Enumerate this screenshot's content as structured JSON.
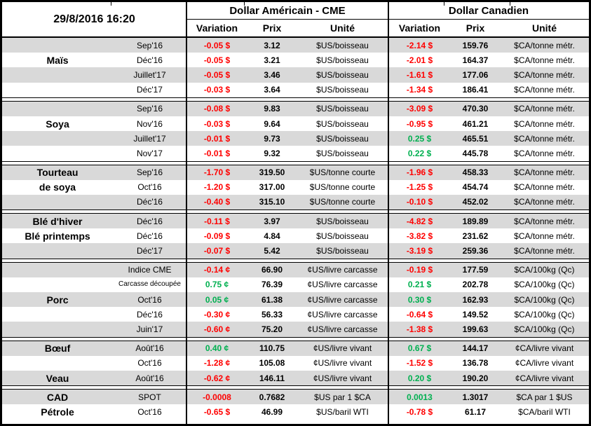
{
  "header": {
    "datetime": "29/8/2016 16:20",
    "us_title": "Dollar Américain - CME",
    "ca_title": "Dollar Canadien",
    "col_variation": "Variation",
    "col_prix": "Prix",
    "col_unite": "Unité"
  },
  "colors": {
    "negative": "#FF0000",
    "positive": "#00B050",
    "row_gray": "#D9D9D9",
    "border": "#000000"
  },
  "sections": [
    {
      "name": "mais",
      "rows": [
        {
          "contract": "Sep'16",
          "us_var": "-0.05 $",
          "us_prix": "3.12",
          "us_unit": "$US/boisseau",
          "ca_var": "-2.14 $",
          "ca_prix": "159.76",
          "ca_unit": "$CA/tonne métr."
        },
        {
          "label": "Maïs",
          "contract": "Déc'16",
          "us_var": "-0.05 $",
          "us_prix": "3.21",
          "us_unit": "$US/boisseau",
          "ca_var": "-2.01 $",
          "ca_prix": "164.37",
          "ca_unit": "$CA/tonne métr."
        },
        {
          "contract": "Juillet'17",
          "us_var": "-0.05 $",
          "us_prix": "3.46",
          "us_unit": "$US/boisseau",
          "ca_var": "-1.61 $",
          "ca_prix": "177.06",
          "ca_unit": "$CA/tonne métr."
        },
        {
          "contract": "Déc'17",
          "us_var": "-0.03 $",
          "us_prix": "3.64",
          "us_unit": "$US/boisseau",
          "ca_var": "-1.34 $",
          "ca_prix": "186.41",
          "ca_unit": "$CA/tonne métr."
        }
      ]
    },
    {
      "name": "soya",
      "rows": [
        {
          "contract": "Sep'16",
          "us_var": "-0.08 $",
          "us_prix": "9.83",
          "us_unit": "$US/boisseau",
          "ca_var": "-3.09 $",
          "ca_prix": "470.30",
          "ca_unit": "$CA/tonne métr."
        },
        {
          "label": "Soya",
          "contract": "Nov'16",
          "us_var": "-0.03 $",
          "us_prix": "9.64",
          "us_unit": "$US/boisseau",
          "ca_var": "-0.95 $",
          "ca_prix": "461.21",
          "ca_unit": "$CA/tonne métr."
        },
        {
          "contract": "Juillet'17",
          "us_var": "-0.01 $",
          "us_prix": "9.73",
          "us_unit": "$US/boisseau",
          "ca_var": "0.25 $",
          "ca_prix": "465.51",
          "ca_unit": "$CA/tonne métr."
        },
        {
          "contract": "Nov'17",
          "us_var": "-0.01 $",
          "us_prix": "9.32",
          "us_unit": "$US/boisseau",
          "ca_var": "0.22 $",
          "ca_prix": "445.78",
          "ca_unit": "$CA/tonne métr."
        }
      ]
    },
    {
      "name": "tourteau-de-soya",
      "rows": [
        {
          "label": "Tourteau",
          "contract": "Sep'16",
          "us_var": "-1.70 $",
          "us_prix": "319.50",
          "us_unit": "$US/tonne courte",
          "ca_var": "-1.96 $",
          "ca_prix": "458.33",
          "ca_unit": "$CA/tonne métr."
        },
        {
          "label": "de soya",
          "contract": "Oct'16",
          "us_var": "-1.20 $",
          "us_prix": "317.00",
          "us_unit": "$US/tonne courte",
          "ca_var": "-1.25 $",
          "ca_prix": "454.74",
          "ca_unit": "$CA/tonne métr."
        },
        {
          "contract": "Déc'16",
          "us_var": "-0.40 $",
          "us_prix": "315.10",
          "us_unit": "$US/tonne courte",
          "ca_var": "-0.10 $",
          "ca_prix": "452.02",
          "ca_unit": "$CA/tonne métr."
        }
      ]
    },
    {
      "name": "ble",
      "rows": [
        {
          "label": "Blé d'hiver",
          "contract": "Déc'16",
          "us_var": "-0.11 $",
          "us_prix": "3.97",
          "us_unit": "$US/boisseau",
          "ca_var": "-4.82 $",
          "ca_prix": "189.89",
          "ca_unit": "$CA/tonne métr."
        },
        {
          "label": "Blé printemps",
          "contract": "Déc'16",
          "us_var": "-0.09 $",
          "us_prix": "4.84",
          "us_unit": "$US/boisseau",
          "ca_var": "-3.82 $",
          "ca_prix": "231.62",
          "ca_unit": "$CA/tonne métr."
        },
        {
          "contract": "Déc'17",
          "us_var": "-0.07 $",
          "us_prix": "5.42",
          "us_unit": "$US/boisseau",
          "ca_var": "-3.19 $",
          "ca_prix": "259.36",
          "ca_unit": "$CA/tonne métr."
        }
      ]
    },
    {
      "name": "porc",
      "rows": [
        {
          "contract": "Indice CME",
          "us_var": "-0.14 ¢",
          "us_prix": "66.90",
          "us_unit": "¢US/livre carcasse",
          "ca_var": "-0.19 $",
          "ca_prix": "177.59",
          "ca_unit": "$CA/100kg (Qc)"
        },
        {
          "contract": "Carcasse découpée",
          "contract_small": true,
          "us_var": "0.75 ¢",
          "us_prix": "76.39",
          "us_unit": "¢US/livre carcasse",
          "ca_var": "0.21 $",
          "ca_prix": "202.78",
          "ca_unit": "$CA/100kg (Qc)"
        },
        {
          "label": "Porc",
          "contract": "Oct'16",
          "us_var": "0.05 ¢",
          "us_prix": "61.38",
          "us_unit": "¢US/livre carcasse",
          "ca_var": "0.30 $",
          "ca_prix": "162.93",
          "ca_unit": "$CA/100kg (Qc)"
        },
        {
          "contract": "Déc'16",
          "us_var": "-0.30 ¢",
          "us_prix": "56.33",
          "us_unit": "¢US/livre carcasse",
          "ca_var": "-0.64 $",
          "ca_prix": "149.52",
          "ca_unit": "$CA/100kg (Qc)"
        },
        {
          "contract": "Juin'17",
          "us_var": "-0.60 ¢",
          "us_prix": "75.20",
          "us_unit": "¢US/livre carcasse",
          "ca_var": "-1.38 $",
          "ca_prix": "199.63",
          "ca_unit": "$CA/100kg (Qc)"
        }
      ]
    },
    {
      "name": "boeuf-veau",
      "rows": [
        {
          "label": "Bœuf",
          "contract": "Août'16",
          "us_var": "0.40 ¢",
          "us_prix": "110.75",
          "us_unit": "¢US/livre vivant",
          "ca_var": "0.67 $",
          "ca_prix": "144.17",
          "ca_unit": "¢CA/livre vivant"
        },
        {
          "contract": "Oct'16",
          "us_var": "-1.28 ¢",
          "us_prix": "105.08",
          "us_unit": "¢US/livre vivant",
          "ca_var": "-1.52 $",
          "ca_prix": "136.78",
          "ca_unit": "¢CA/livre vivant"
        },
        {
          "label": "Veau",
          "contract": "Août'16",
          "us_var": "-0.62 ¢",
          "us_prix": "146.11",
          "us_unit": "¢US/livre vivant",
          "ca_var": "0.20 $",
          "ca_prix": "190.20",
          "ca_unit": "¢CA/livre vivant"
        }
      ]
    },
    {
      "name": "cad-petrole",
      "rows": [
        {
          "label": "CAD",
          "contract": "SPOT",
          "us_var": "-0.0008",
          "us_prix": "0.7682",
          "us_unit": "$US par 1 $CA",
          "ca_var": "0.0013",
          "ca_prix": "1.3017",
          "ca_unit": "$CA par 1 $US"
        },
        {
          "label": "Pétrole",
          "contract": "Oct'16",
          "us_var": "-0.65 $",
          "us_prix": "46.99",
          "us_unit": "$US/baril WTI",
          "ca_var": "-0.78 $",
          "ca_prix": "61.17",
          "ca_unit": "$CA/baril WTI"
        }
      ]
    }
  ]
}
